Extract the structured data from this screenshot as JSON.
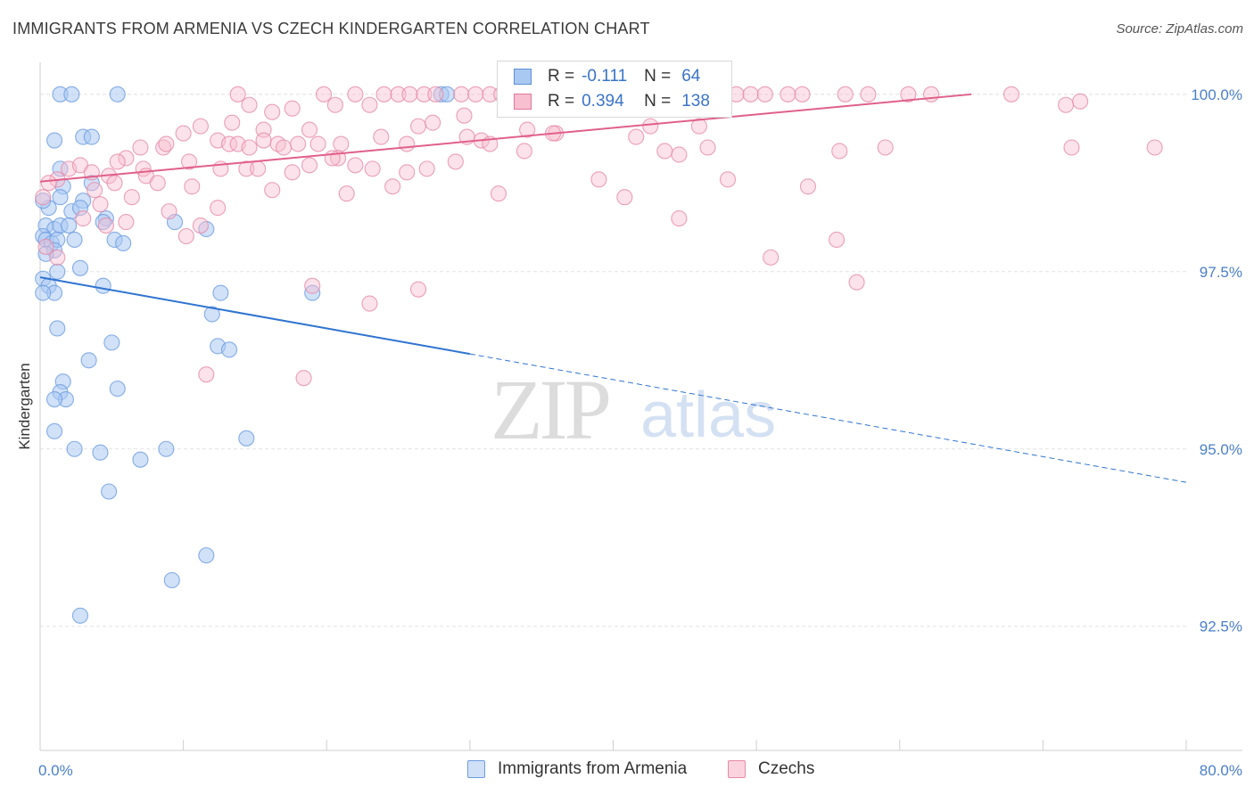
{
  "title": "IMMIGRANTS FROM ARMENIA VS CZECH KINDERGARTEN CORRELATION CHART",
  "source": "Source: ZipAtlas.com",
  "watermark": {
    "zip": "ZIP",
    "atlas": "atlas"
  },
  "legend": {
    "rows": [
      {
        "r_label": "R =",
        "r_value": "-0.111",
        "n_label": "N =",
        "n_value": "64",
        "color": "#a9c8f2",
        "border": "#5b8fd6"
      },
      {
        "r_label": "R =",
        "r_value": "0.394",
        "n_label": "N =",
        "n_value": "138",
        "color": "#f8bfd0",
        "border": "#e0789a"
      }
    ]
  },
  "bottom_legend": [
    {
      "label": "Immigrants from Armenia",
      "color": "#cfe0f7",
      "border": "#6c9be0"
    },
    {
      "label": "Czechs",
      "color": "#fbd3df",
      "border": "#e58aa7"
    }
  ],
  "chart_data": {
    "type": "scatter",
    "title": "IMMIGRANTS FROM ARMENIA VS CZECH KINDERGARTEN CORRELATION CHART",
    "xlabel": "",
    "ylabel": "Kindergarten",
    "xlim": [
      0,
      80
    ],
    "ylim": [
      90.75,
      100.45
    ],
    "x_tick_labels": [
      "0.0%",
      "80.0%"
    ],
    "y_ticks": [
      100.0,
      97.5,
      95.0,
      92.5
    ],
    "y_tick_labels": [
      "100.0%",
      "97.5%",
      "95.0%",
      "92.5%"
    ],
    "grid": true,
    "series": [
      {
        "name": "Immigrants from Armenia",
        "color": "#6c9be0",
        "fill": "#a9c8f2",
        "trend": {
          "x0": 0.0,
          "y0": 97.42,
          "x1": 30.0,
          "y1": 96.34,
          "dash_x1": 80.0,
          "dash_y1": 94.53
        },
        "points": [
          [
            1.4,
            100.0
          ],
          [
            2.2,
            100.0
          ],
          [
            5.4,
            100.0
          ],
          [
            1.0,
            99.35
          ],
          [
            3.0,
            99.4
          ],
          [
            3.6,
            99.4
          ],
          [
            1.4,
            98.95
          ],
          [
            1.6,
            98.7
          ],
          [
            3.6,
            98.75
          ],
          [
            1.4,
            98.55
          ],
          [
            3.0,
            98.5
          ],
          [
            0.6,
            98.4
          ],
          [
            2.2,
            98.35
          ],
          [
            2.8,
            98.4
          ],
          [
            0.4,
            98.15
          ],
          [
            1.0,
            98.1
          ],
          [
            1.4,
            98.15
          ],
          [
            2.0,
            98.15
          ],
          [
            4.6,
            98.25
          ],
          [
            4.4,
            98.2
          ],
          [
            9.4,
            98.2
          ],
          [
            11.6,
            98.1
          ],
          [
            0.2,
            98.0
          ],
          [
            0.4,
            97.95
          ],
          [
            0.8,
            97.9
          ],
          [
            1.2,
            97.95
          ],
          [
            2.4,
            97.95
          ],
          [
            5.2,
            97.95
          ],
          [
            5.8,
            97.9
          ],
          [
            1.0,
            97.8
          ],
          [
            0.4,
            97.75
          ],
          [
            1.2,
            97.5
          ],
          [
            2.8,
            97.55
          ],
          [
            0.2,
            97.4
          ],
          [
            0.6,
            97.3
          ],
          [
            1.0,
            97.2
          ],
          [
            0.2,
            97.2
          ],
          [
            4.4,
            97.3
          ],
          [
            12.6,
            97.2
          ],
          [
            19.0,
            97.2
          ],
          [
            12.0,
            96.9
          ],
          [
            1.2,
            96.7
          ],
          [
            5.0,
            96.5
          ],
          [
            12.4,
            96.45
          ],
          [
            13.2,
            96.4
          ],
          [
            3.4,
            96.25
          ],
          [
            1.6,
            95.95
          ],
          [
            1.4,
            95.8
          ],
          [
            1.8,
            95.7
          ],
          [
            5.4,
            95.85
          ],
          [
            1.0,
            95.7
          ],
          [
            1.0,
            95.25
          ],
          [
            2.4,
            95.0
          ],
          [
            4.2,
            94.95
          ],
          [
            8.8,
            95.0
          ],
          [
            14.4,
            95.15
          ],
          [
            7.0,
            94.85
          ],
          [
            4.8,
            94.4
          ],
          [
            11.6,
            93.5
          ],
          [
            9.2,
            93.15
          ],
          [
            2.8,
            92.65
          ],
          [
            28.0,
            100.0
          ],
          [
            28.4,
            100.0
          ],
          [
            0.2,
            98.5
          ]
        ]
      },
      {
        "name": "Czechs",
        "color": "#e58aa7",
        "fill": "#f8bfd0",
        "trend": {
          "x0": 0.0,
          "y0": 98.77,
          "x1": 65.0,
          "y1": 100.0
        },
        "points": [
          [
            13.8,
            100.0
          ],
          [
            14.6,
            99.85
          ],
          [
            16.2,
            99.75
          ],
          [
            17.6,
            99.8
          ],
          [
            19.8,
            100.0
          ],
          [
            20.6,
            99.85
          ],
          [
            22.0,
            100.0
          ],
          [
            23.0,
            99.85
          ],
          [
            24.0,
            100.0
          ],
          [
            25.0,
            100.0
          ],
          [
            25.8,
            100.0
          ],
          [
            26.8,
            100.0
          ],
          [
            27.6,
            100.0
          ],
          [
            29.4,
            100.0
          ],
          [
            30.4,
            100.0
          ],
          [
            31.4,
            100.0
          ],
          [
            32.2,
            100.0
          ],
          [
            33.4,
            100.0
          ],
          [
            34.6,
            100.0
          ],
          [
            35.4,
            100.0
          ],
          [
            36.6,
            100.0
          ],
          [
            38.0,
            100.0
          ],
          [
            39.2,
            100.0
          ],
          [
            40.0,
            100.0
          ],
          [
            41.2,
            100.0
          ],
          [
            42.6,
            100.0
          ],
          [
            43.4,
            100.0
          ],
          [
            44.4,
            100.0
          ],
          [
            45.6,
            100.0
          ],
          [
            47.0,
            100.0
          ],
          [
            48.6,
            100.0
          ],
          [
            49.6,
            100.0
          ],
          [
            50.6,
            100.0
          ],
          [
            52.2,
            100.0
          ],
          [
            53.2,
            100.0
          ],
          [
            56.2,
            100.0
          ],
          [
            57.8,
            100.0
          ],
          [
            60.6,
            100.0
          ],
          [
            62.2,
            100.0
          ],
          [
            67.8,
            100.0
          ],
          [
            71.6,
            99.85
          ],
          [
            72.6,
            99.9
          ],
          [
            11.2,
            99.55
          ],
          [
            13.4,
            99.6
          ],
          [
            15.6,
            99.5
          ],
          [
            18.8,
            99.5
          ],
          [
            26.4,
            99.55
          ],
          [
            27.4,
            99.6
          ],
          [
            29.8,
            99.4
          ],
          [
            36.0,
            99.45
          ],
          [
            41.6,
            99.4
          ],
          [
            42.6,
            99.55
          ],
          [
            7.0,
            99.25
          ],
          [
            8.6,
            99.25
          ],
          [
            8.8,
            99.3
          ],
          [
            10.0,
            99.45
          ],
          [
            12.4,
            99.35
          ],
          [
            13.2,
            99.3
          ],
          [
            13.8,
            99.3
          ],
          [
            14.6,
            99.25
          ],
          [
            15.6,
            99.35
          ],
          [
            16.6,
            99.3
          ],
          [
            17.0,
            99.25
          ],
          [
            18.0,
            99.3
          ],
          [
            19.4,
            99.3
          ],
          [
            21.0,
            99.3
          ],
          [
            23.8,
            99.4
          ],
          [
            25.6,
            99.3
          ],
          [
            30.8,
            99.35
          ],
          [
            31.4,
            99.3
          ],
          [
            33.8,
            99.2
          ],
          [
            43.6,
            99.2
          ],
          [
            44.6,
            99.15
          ],
          [
            46.6,
            99.25
          ],
          [
            55.8,
            99.2
          ],
          [
            59.0,
            99.25
          ],
          [
            72.0,
            99.25
          ],
          [
            77.8,
            99.25
          ],
          [
            6.0,
            99.1
          ],
          [
            7.2,
            98.95
          ],
          [
            5.4,
            99.05
          ],
          [
            10.4,
            99.05
          ],
          [
            12.6,
            98.95
          ],
          [
            14.4,
            98.95
          ],
          [
            15.2,
            98.95
          ],
          [
            17.6,
            98.9
          ],
          [
            18.8,
            99.0
          ],
          [
            22.0,
            99.0
          ],
          [
            23.2,
            98.95
          ],
          [
            25.6,
            98.9
          ],
          [
            27.0,
            98.95
          ],
          [
            29.0,
            99.05
          ],
          [
            2.0,
            98.95
          ],
          [
            2.8,
            99.0
          ],
          [
            3.6,
            98.9
          ],
          [
            4.8,
            98.85
          ],
          [
            5.2,
            98.75
          ],
          [
            7.4,
            98.85
          ],
          [
            8.2,
            98.75
          ],
          [
            1.2,
            98.8
          ],
          [
            0.6,
            98.75
          ],
          [
            16.2,
            98.65
          ],
          [
            21.4,
            98.6
          ],
          [
            24.6,
            98.7
          ],
          [
            32.0,
            98.6
          ],
          [
            40.8,
            98.55
          ],
          [
            48.0,
            98.8
          ],
          [
            53.6,
            98.7
          ],
          [
            3.8,
            98.65
          ],
          [
            4.2,
            98.45
          ],
          [
            6.4,
            98.55
          ],
          [
            9.0,
            98.35
          ],
          [
            12.4,
            98.4
          ],
          [
            0.2,
            98.55
          ],
          [
            4.6,
            98.15
          ],
          [
            6.0,
            98.2
          ],
          [
            10.2,
            98.0
          ],
          [
            11.2,
            98.15
          ],
          [
            44.6,
            98.25
          ],
          [
            55.6,
            97.95
          ],
          [
            0.4,
            97.85
          ],
          [
            1.2,
            97.7
          ],
          [
            51.0,
            97.7
          ],
          [
            57.0,
            97.35
          ],
          [
            19.0,
            97.3
          ],
          [
            26.4,
            97.25
          ],
          [
            23.0,
            97.05
          ],
          [
            11.6,
            96.05
          ],
          [
            18.4,
            96.0
          ],
          [
            10.6,
            98.7
          ],
          [
            20.8,
            99.1
          ],
          [
            34.0,
            99.5
          ],
          [
            39.0,
            98.8
          ],
          [
            46.0,
            99.55
          ],
          [
            29.6,
            99.7
          ],
          [
            20.4,
            99.1
          ],
          [
            3.0,
            98.25
          ],
          [
            35.8,
            99.45
          ]
        ]
      }
    ]
  }
}
